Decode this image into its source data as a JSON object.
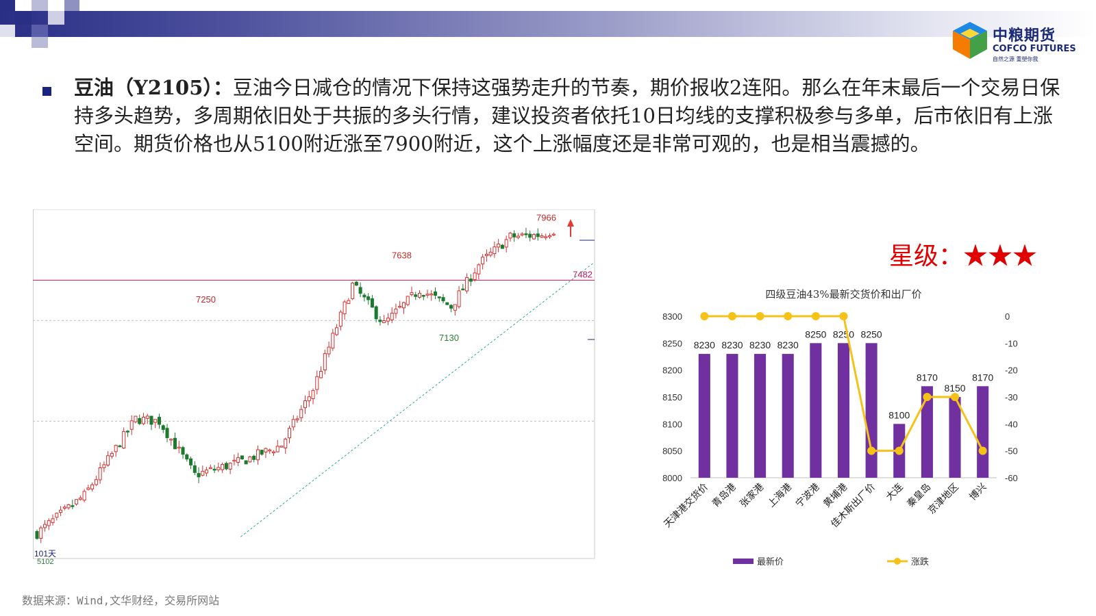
{
  "header": {
    "logo_cn": "中粮期货",
    "logo_en": "COFCO FUTURES",
    "logo_sub": "自然之源 重塑你我"
  },
  "text": {
    "title": "豆油（Y2105）：",
    "body": "豆油今日减仓的情况下保持这强势走升的节奏，期价报收2连阳。那么在年末最后一个交易日保持多头趋势，多周期依旧处于共振的多头行情，建议投资者依托10日均线的支撑积极参与多单，后市依旧有上涨空间。期货价格也从5100附近涨至7900附近，这个上涨幅度还是非常可观的，也是相当震撼的。"
  },
  "rating": {
    "label": "星级：",
    "stars": "★★★"
  },
  "source": "数据来源：Wind,文华财经，交易所网站",
  "chart_data": [
    {
      "type": "candlestick",
      "annotations": [
        "7966",
        "7638",
        "7250",
        "7130",
        "7482",
        "101天",
        "5102"
      ],
      "ylim": [
        5050,
        8100
      ],
      "horizontal_line": 7482,
      "dashed_lines": [
        7130,
        6250
      ],
      "trend_line": [
        [
          5240,
          6490
        ],
        [
          7480,
          7990
        ]
      ],
      "colors": {
        "up": "#d32f2f",
        "down": "#1b7a2e",
        "hline": "#c2185b",
        "trend": "#26a69a"
      }
    },
    {
      "type": "bar",
      "title": "四级豆油43%最新交货价和出厂价",
      "categories": [
        "天津港交货价",
        "青岛港",
        "张家港",
        "上海港",
        "宁波港",
        "黄埔港",
        "佳木斯出厂价",
        "大连",
        "秦皇岛",
        "京津地区",
        "博兴"
      ],
      "series": [
        {
          "name": "最新价",
          "type": "bar",
          "axis": "left",
          "values": [
            8230,
            8230,
            8230,
            8230,
            8250,
            8250,
            8250,
            8100,
            8170,
            8150,
            8170
          ]
        },
        {
          "name": "涨跌",
          "type": "line",
          "axis": "right",
          "values": [
            0,
            0,
            0,
            0,
            0,
            0,
            -50,
            -50,
            -30,
            -30,
            -50
          ]
        }
      ],
      "y_left": {
        "min": 8000,
        "max": 8300,
        "ticks": [
          "8000",
          "8050",
          "8100",
          "8150",
          "8200",
          "8250",
          "8300"
        ]
      },
      "y_right": {
        "min": -60,
        "max": 0,
        "ticks": [
          "-60",
          "-50",
          "-40",
          "-30",
          "-20",
          "-10",
          "0"
        ]
      },
      "colors": {
        "bar": "#7030a0",
        "line": "#f5c218"
      },
      "legend": "bottom"
    }
  ]
}
